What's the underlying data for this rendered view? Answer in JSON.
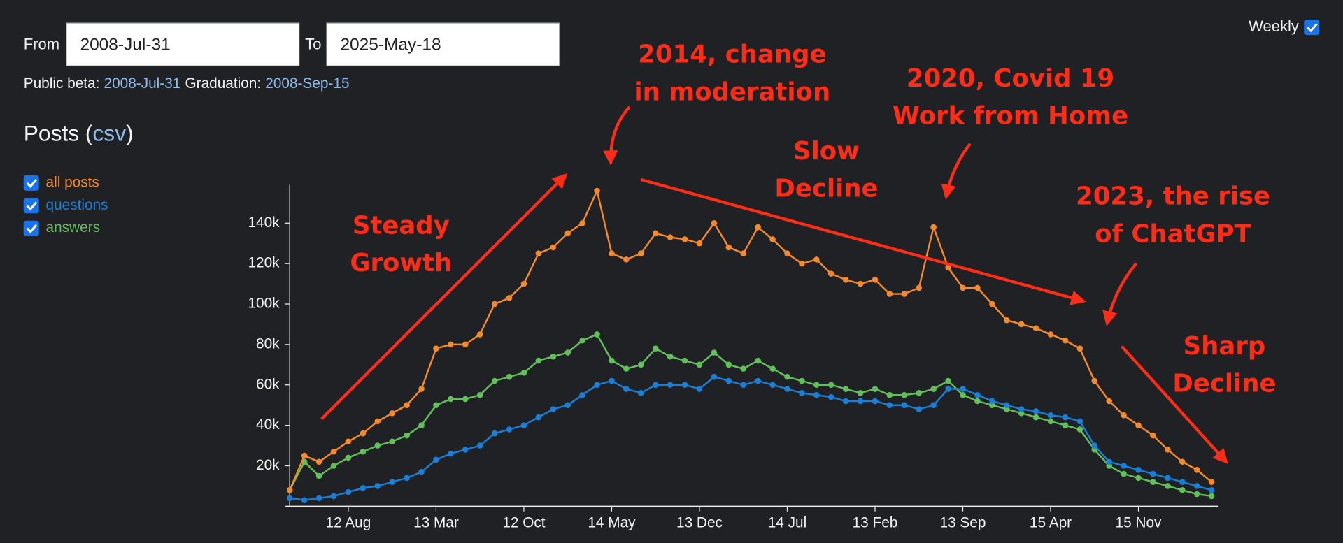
{
  "controls": {
    "from_label": "From",
    "from_value": "2008-Jul-31",
    "to_label": "To",
    "to_value": "2025-May-18",
    "weekly_label": "Weekly",
    "public_beta_label": "Public beta:",
    "public_beta_date": "2008-Jul-31",
    "graduation_label": "Graduation:",
    "graduation_date": "2008-Sep-15"
  },
  "section": {
    "title": "Posts",
    "link_prefix": "(",
    "link": "csv",
    "link_suffix": ")"
  },
  "chart_data": {
    "type": "line",
    "categories": [
      null,
      null,
      null,
      null,
      "12 Aug",
      null,
      null,
      null,
      null,
      null,
      "13 Mar",
      null,
      null,
      null,
      null,
      null,
      "12 Oct",
      null,
      null,
      null,
      null,
      null,
      "14 May",
      null,
      null,
      null,
      null,
      null,
      "13 Dec",
      null,
      null,
      null,
      null,
      null,
      "14 Jul",
      null,
      null,
      null,
      null,
      null,
      "13 Feb",
      null,
      null,
      null,
      null,
      null,
      "13 Sep",
      null,
      null,
      null,
      null,
      null,
      "15 Apr",
      null,
      null,
      null,
      null,
      null,
      "15 Nov",
      null,
      null,
      null,
      null,
      null
    ],
    "series": [
      {
        "name": "all posts",
        "color": "#f5892c",
        "values": [
          8000,
          25000,
          22000,
          27000,
          32000,
          36000,
          42000,
          46000,
          50000,
          58000,
          78000,
          80000,
          80000,
          85000,
          100000,
          103000,
          110000,
          125000,
          128000,
          135000,
          140000,
          156000,
          125000,
          122000,
          125000,
          135000,
          133000,
          132000,
          130000,
          140000,
          128000,
          125000,
          138000,
          132000,
          125000,
          120000,
          122000,
          115000,
          112000,
          110000,
          112000,
          105000,
          105000,
          108000,
          138000,
          118000,
          108000,
          108000,
          100000,
          92000,
          90000,
          88000,
          85000,
          82000,
          78000,
          62000,
          52000,
          45000,
          40000,
          35000,
          28000,
          22000,
          18000,
          12000
        ]
      },
      {
        "name": "questions",
        "color": "#1a7fd8",
        "values": [
          4000,
          3000,
          4000,
          5000,
          7000,
          9000,
          10000,
          12000,
          14000,
          17000,
          23000,
          26000,
          28000,
          30000,
          36000,
          38000,
          40000,
          44000,
          48000,
          50000,
          55000,
          60000,
          62000,
          58000,
          56000,
          60000,
          60000,
          60000,
          58000,
          64000,
          62000,
          60000,
          62000,
          60000,
          58000,
          56000,
          55000,
          54000,
          52000,
          52000,
          52000,
          50000,
          50000,
          48000,
          50000,
          58000,
          58000,
          55000,
          52000,
          50000,
          48000,
          47000,
          45000,
          44000,
          42000,
          30000,
          22000,
          20000,
          18000,
          16000,
          14000,
          12000,
          10000,
          8000
        ]
      },
      {
        "name": "answers",
        "color": "#62c05a",
        "values": [
          8000,
          22000,
          15000,
          20000,
          24000,
          27000,
          30000,
          32000,
          35000,
          40000,
          50000,
          53000,
          53000,
          55000,
          62000,
          64000,
          66000,
          72000,
          74000,
          76000,
          82000,
          85000,
          72000,
          68000,
          70000,
          78000,
          74000,
          72000,
          70000,
          76000,
          70000,
          68000,
          72000,
          68000,
          64000,
          62000,
          60000,
          60000,
          58000,
          56000,
          58000,
          55000,
          55000,
          56000,
          58000,
          62000,
          55000,
          52000,
          50000,
          48000,
          46000,
          44000,
          42000,
          40000,
          38000,
          28000,
          20000,
          16000,
          14000,
          12000,
          10000,
          8000,
          6000,
          5000
        ]
      }
    ],
    "ylim": [
      0,
      159000
    ],
    "yticks": [
      {
        "value": 20000,
        "label": "20k"
      },
      {
        "value": 40000,
        "label": "40k"
      },
      {
        "value": 60000,
        "label": "60k"
      },
      {
        "value": 80000,
        "label": "80k"
      },
      {
        "value": 100000,
        "label": "100k"
      },
      {
        "value": 120000,
        "label": "120k"
      },
      {
        "value": 140000,
        "label": "140k"
      }
    ],
    "grid": false,
    "annotations": [
      {
        "lines": [
          "Steady",
          "Growth"
        ]
      },
      {
        "lines": [
          "2014, change",
          "in moderation"
        ]
      },
      {
        "lines": [
          "Slow",
          "Decline"
        ]
      },
      {
        "lines": [
          "2020, Covid 19",
          "Work from Home"
        ]
      },
      {
        "lines": [
          "2023, the rise",
          "of ChatGPT"
        ]
      },
      {
        "lines": [
          "Sharp",
          "Decline"
        ]
      }
    ]
  }
}
